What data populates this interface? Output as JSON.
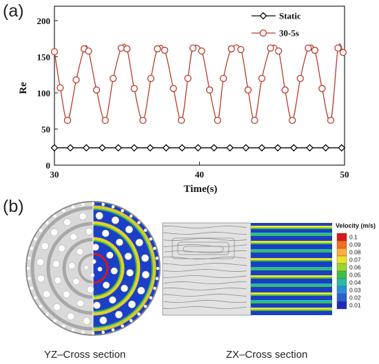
{
  "panel_a_label": "(a)",
  "panel_b_label": "(b)",
  "chart_data": {
    "type": "line",
    "title": "",
    "xlabel": "Time(s)",
    "ylabel": "Re",
    "xlim": [
      30,
      50
    ],
    "ylim": [
      0,
      220
    ],
    "xticks": [
      30,
      40,
      50
    ],
    "yticks": [
      0,
      50,
      100,
      150,
      200
    ],
    "legend_position": "top-right",
    "series": [
      {
        "name": "Static",
        "color": "#000000",
        "marker": "diamond",
        "x": [
          30,
          31.1,
          32.2,
          33.3,
          34.4,
          35.5,
          36.6,
          37.7,
          38.8,
          39.9,
          41,
          42.1,
          43.2,
          44.3,
          45.4,
          46.5,
          47.6,
          48.7,
          49.8
        ],
        "y": [
          24,
          24,
          24,
          24,
          24,
          24,
          24,
          24,
          24,
          24,
          24,
          24,
          24,
          24,
          24,
          24,
          24,
          24,
          24
        ]
      },
      {
        "name": "30-5s",
        "color": "#b83a2c",
        "marker": "circle",
        "x": [
          30,
          30.4,
          30.9,
          31.5,
          32.05,
          32.35,
          32.9,
          33.5,
          34.05,
          34.6,
          35.0,
          35.5,
          36.1,
          36.65,
          37.1,
          37.6,
          38.2,
          38.75,
          39.2,
          39.55,
          40.15,
          40.7,
          41.25,
          41.65,
          42.2,
          42.85,
          43.35,
          43.8,
          44.3,
          44.9,
          45.45,
          45.9,
          46.4,
          46.95,
          47.5,
          47.95,
          48.45,
          49.05,
          49.55,
          49.9
        ],
        "y": [
          157,
          107,
          62,
          118,
          161,
          158,
          104,
          62,
          120,
          162,
          161,
          106,
          62,
          120,
          161,
          159,
          106,
          62,
          120,
          162,
          158,
          104,
          62,
          120,
          161,
          160,
          104,
          62,
          120,
          162,
          158,
          104,
          62,
          120,
          162,
          159,
          106,
          62,
          162,
          156
        ]
      }
    ]
  },
  "velocity_legend": {
    "title": "Velocity (m/s)",
    "levels": [
      "0.1",
      "0.09",
      "0.08",
      "0.07",
      "0.06",
      "0.05",
      "0.04",
      "0.03",
      "0.02",
      "0.01"
    ],
    "colors": [
      "#d7191c",
      "#f46d1e",
      "#fdae3a",
      "#e8e22a",
      "#9bd52b",
      "#3fbd4a",
      "#2bb9a6",
      "#2c8fd6",
      "#2a5fd0",
      "#1f2bb8"
    ]
  },
  "captions": {
    "yz": "YZ–Cross section",
    "zx": "ZX–Cross section"
  }
}
